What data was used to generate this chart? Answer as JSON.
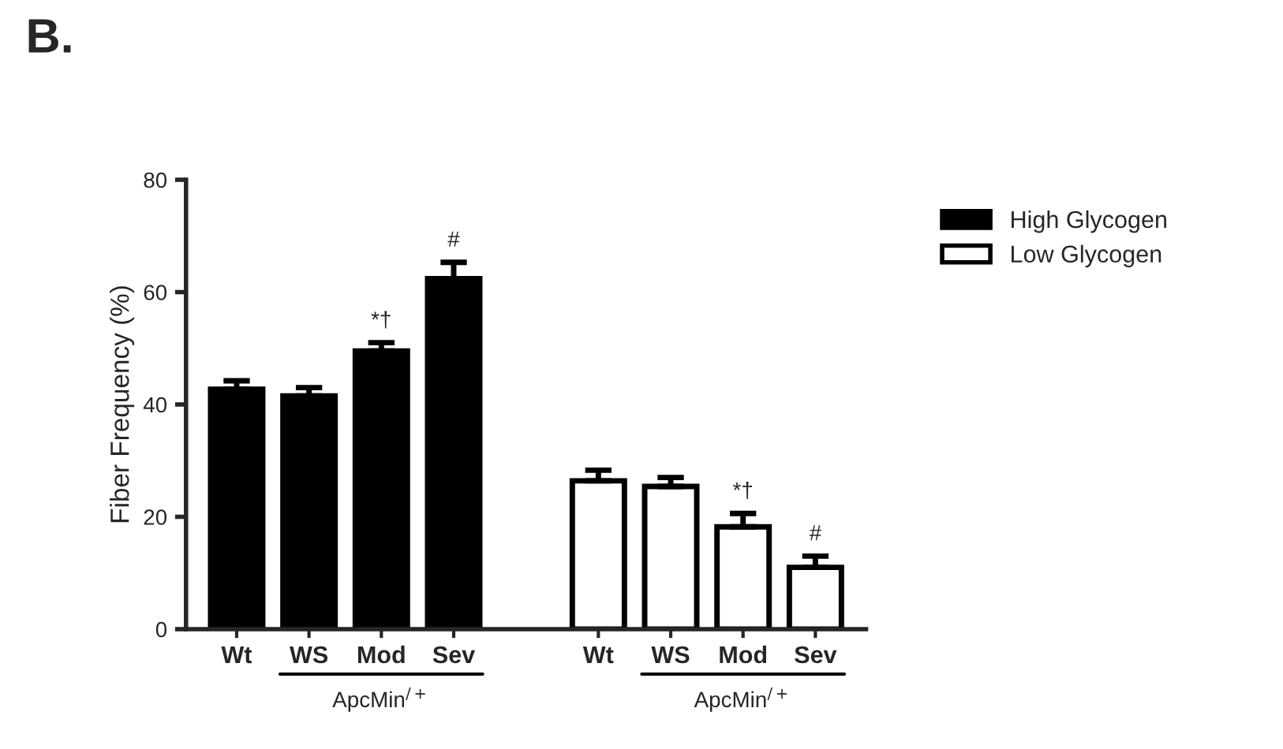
{
  "chart_data": {
    "type": "bar",
    "title": "B.",
    "ylabel": "Fiber Frequency (%)",
    "categories": [
      "Wt",
      "WS",
      "Mod",
      "Sev",
      "Wt",
      "WS",
      "Mod",
      "Sev"
    ],
    "series": [
      {
        "name": "High Glycogen",
        "color": "#000000",
        "values": [
          42.7,
          41.5,
          49.5,
          62.4,
          null,
          null,
          null,
          null
        ],
        "errors": [
          1.5,
          1.5,
          1.5,
          2.9,
          null,
          null,
          null,
          null
        ]
      },
      {
        "name": "Low Glycogen",
        "color": "#ffffff",
        "values": [
          null,
          null,
          null,
          null,
          26.4,
          25.4,
          18.2,
          11.0
        ],
        "errors": [
          null,
          null,
          null,
          null,
          1.9,
          1.6,
          2.4,
          2.0
        ]
      }
    ],
    "ylim": [
      0,
      80
    ],
    "yticks": [
      0,
      20,
      40,
      60,
      80
    ],
    "grid": false,
    "legend": "right",
    "annotations": [
      "*†",
      "#",
      "*†",
      "#",
      "ApcMin$^{/+}$",
      "ApcMin$^{/+}$"
    ]
  }
}
